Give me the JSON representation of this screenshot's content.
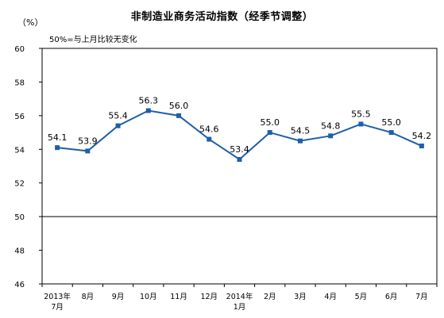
{
  "chart_data": {
    "type": "line",
    "title": "非制造业商务活动指数（经季节调整）",
    "unit_label": "（%）",
    "note": "50%=与上月比较无变化",
    "ylim": [
      46,
      60
    ],
    "yticks": [
      46,
      48,
      50,
      52,
      54,
      56,
      58,
      60
    ],
    "reference_line": 50,
    "categories": [
      [
        "2013年",
        "7月"
      ],
      [
        "8月"
      ],
      [
        "9月"
      ],
      [
        "10月"
      ],
      [
        "11月"
      ],
      [
        "12月"
      ],
      [
        "2014年",
        "1月"
      ],
      [
        "2月"
      ],
      [
        "3月"
      ],
      [
        "4月"
      ],
      [
        "5月"
      ],
      [
        "6月"
      ],
      [
        "7月"
      ]
    ],
    "values": [
      54.1,
      53.9,
      55.4,
      56.3,
      56.0,
      54.6,
      53.4,
      55.0,
      54.5,
      54.8,
      55.5,
      55.0,
      54.2
    ],
    "data_labels": [
      "54.1",
      "53.9",
      "55.4",
      "56.3",
      "56.0",
      "54.6",
      "53.4",
      "55.0",
      "54.5",
      "54.8",
      "55.5",
      "55.0",
      "54.2"
    ],
    "line_color": "#1f5fa8"
  }
}
